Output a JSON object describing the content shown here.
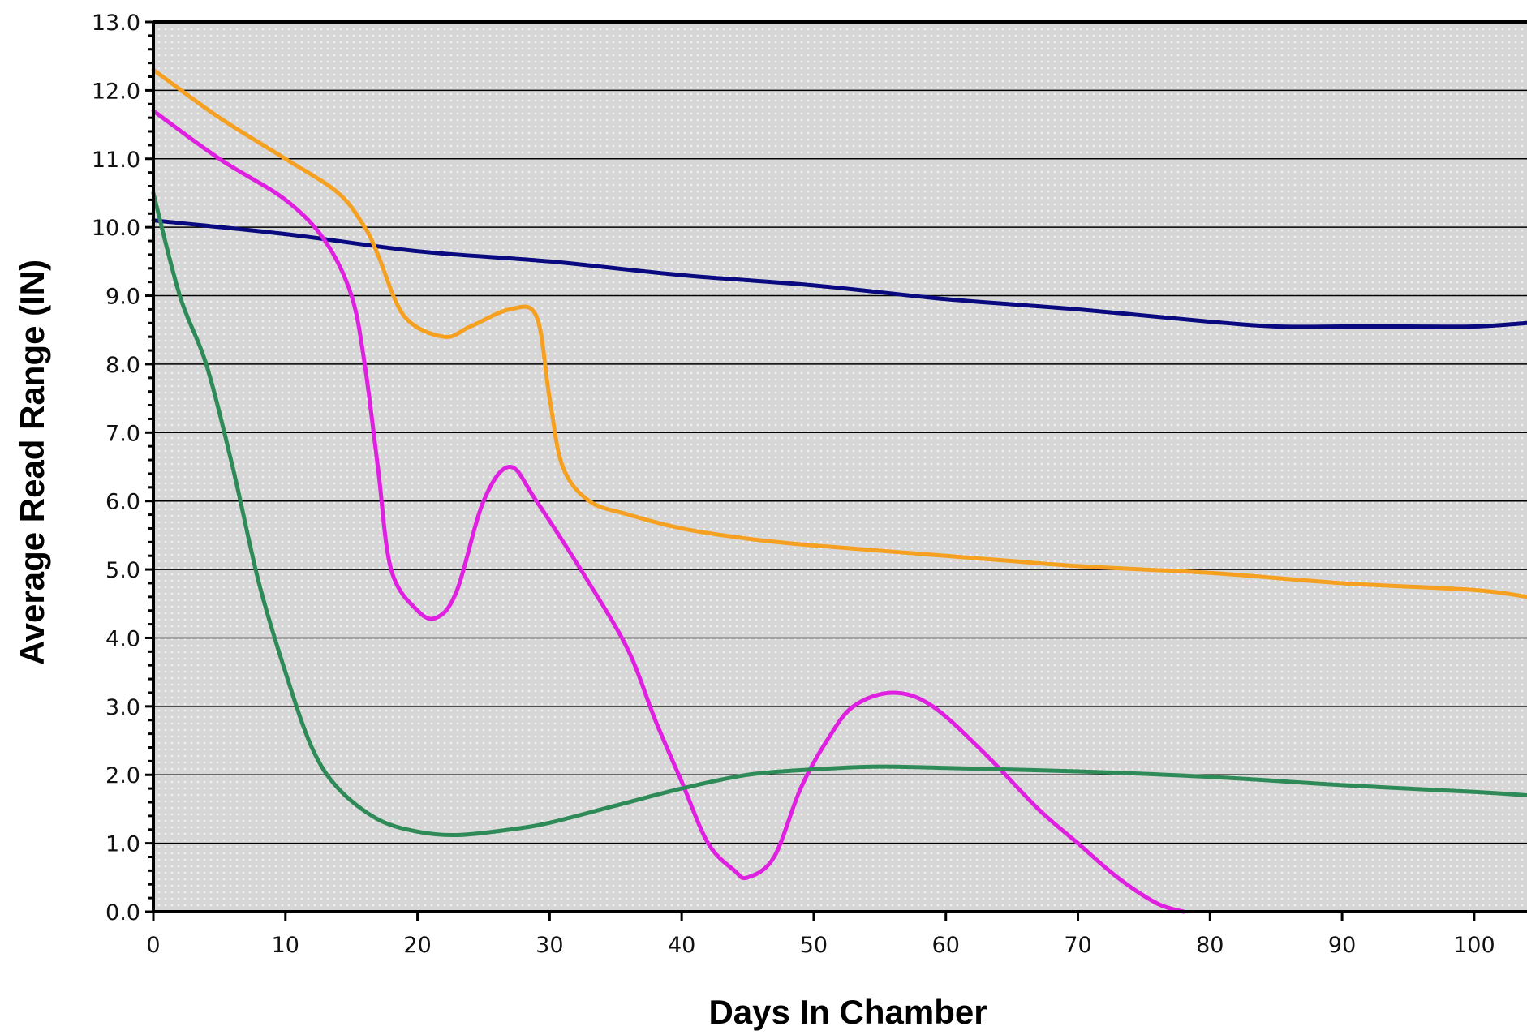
{
  "chart_data": {
    "type": "line",
    "title": "",
    "xlabel": "Days In Chamber",
    "ylabel": "Average Read Range (IN)",
    "xlim": [
      0,
      104
    ],
    "ylim": [
      0,
      13
    ],
    "x_ticks": [
      "0",
      "10",
      "20",
      "30",
      "40",
      "50",
      "60",
      "70",
      "80",
      "90",
      "100"
    ],
    "y_ticks": [
      "0.0",
      "1.0",
      "2.0",
      "3.0",
      "4.0",
      "5.0",
      "6.0",
      "7.0",
      "8.0",
      "9.0",
      "10.0",
      "11.0",
      "12.0",
      "13.0"
    ],
    "grid": true,
    "legend": "none",
    "plot_background": "#d8d8d8",
    "series": [
      {
        "color": "#0a0a80",
        "points": [
          [
            0,
            10.1
          ],
          [
            10,
            9.9
          ],
          [
            20,
            9.65
          ],
          [
            30,
            9.5
          ],
          [
            40,
            9.3
          ],
          [
            50,
            9.15
          ],
          [
            60,
            8.95
          ],
          [
            70,
            8.8
          ],
          [
            80,
            8.62
          ],
          [
            85,
            8.55
          ],
          [
            90,
            8.55
          ],
          [
            95,
            8.55
          ],
          [
            100,
            8.55
          ],
          [
            104,
            8.6
          ]
        ]
      },
      {
        "color": "#f5a020",
        "points": [
          [
            0,
            12.3
          ],
          [
            5,
            11.6
          ],
          [
            10,
            11.0
          ],
          [
            14,
            10.5
          ],
          [
            16,
            10.0
          ],
          [
            17,
            9.6
          ],
          [
            19,
            8.7
          ],
          [
            22,
            8.4
          ],
          [
            24,
            8.55
          ],
          [
            27,
            8.8
          ],
          [
            29,
            8.7
          ],
          [
            30,
            7.5
          ],
          [
            31,
            6.5
          ],
          [
            33,
            6.0
          ],
          [
            36,
            5.8
          ],
          [
            40,
            5.6
          ],
          [
            45,
            5.45
          ],
          [
            50,
            5.35
          ],
          [
            60,
            5.2
          ],
          [
            70,
            5.05
          ],
          [
            80,
            4.95
          ],
          [
            90,
            4.8
          ],
          [
            100,
            4.7
          ],
          [
            104,
            4.6
          ]
        ]
      },
      {
        "color": "#e020e0",
        "points": [
          [
            0,
            11.7
          ],
          [
            5,
            11.0
          ],
          [
            10,
            10.4
          ],
          [
            13,
            9.8
          ],
          [
            15,
            9.0
          ],
          [
            16,
            8.0
          ],
          [
            17,
            6.5
          ],
          [
            18,
            5.0
          ],
          [
            20,
            4.4
          ],
          [
            21.5,
            4.3
          ],
          [
            23,
            4.7
          ],
          [
            25,
            6.0
          ],
          [
            27,
            6.5
          ],
          [
            29,
            6.0
          ],
          [
            33,
            4.8
          ],
          [
            36,
            3.8
          ],
          [
            38,
            2.8
          ],
          [
            40,
            1.9
          ],
          [
            42,
            1.0
          ],
          [
            44,
            0.6
          ],
          [
            45,
            0.5
          ],
          [
            47,
            0.8
          ],
          [
            49,
            1.8
          ],
          [
            51,
            2.5
          ],
          [
            53,
            3.0
          ],
          [
            56,
            3.2
          ],
          [
            59,
            3.0
          ],
          [
            63,
            2.3
          ],
          [
            67,
            1.5
          ],
          [
            70,
            1.0
          ],
          [
            73,
            0.5
          ],
          [
            76,
            0.12
          ],
          [
            78,
            0.0
          ]
        ]
      },
      {
        "color": "#2e8b57",
        "points": [
          [
            0,
            10.5
          ],
          [
            2,
            9.0
          ],
          [
            4,
            8.0
          ],
          [
            6,
            6.5
          ],
          [
            8,
            4.8
          ],
          [
            10,
            3.5
          ],
          [
            12,
            2.4
          ],
          [
            14,
            1.8
          ],
          [
            17,
            1.35
          ],
          [
            20,
            1.17
          ],
          [
            23,
            1.12
          ],
          [
            27,
            1.2
          ],
          [
            30,
            1.3
          ],
          [
            35,
            1.55
          ],
          [
            40,
            1.8
          ],
          [
            45,
            2.0
          ],
          [
            50,
            2.08
          ],
          [
            55,
            2.12
          ],
          [
            60,
            2.1
          ],
          [
            70,
            2.05
          ],
          [
            80,
            1.97
          ],
          [
            90,
            1.85
          ],
          [
            100,
            1.75
          ],
          [
            104,
            1.7
          ]
        ]
      }
    ]
  }
}
